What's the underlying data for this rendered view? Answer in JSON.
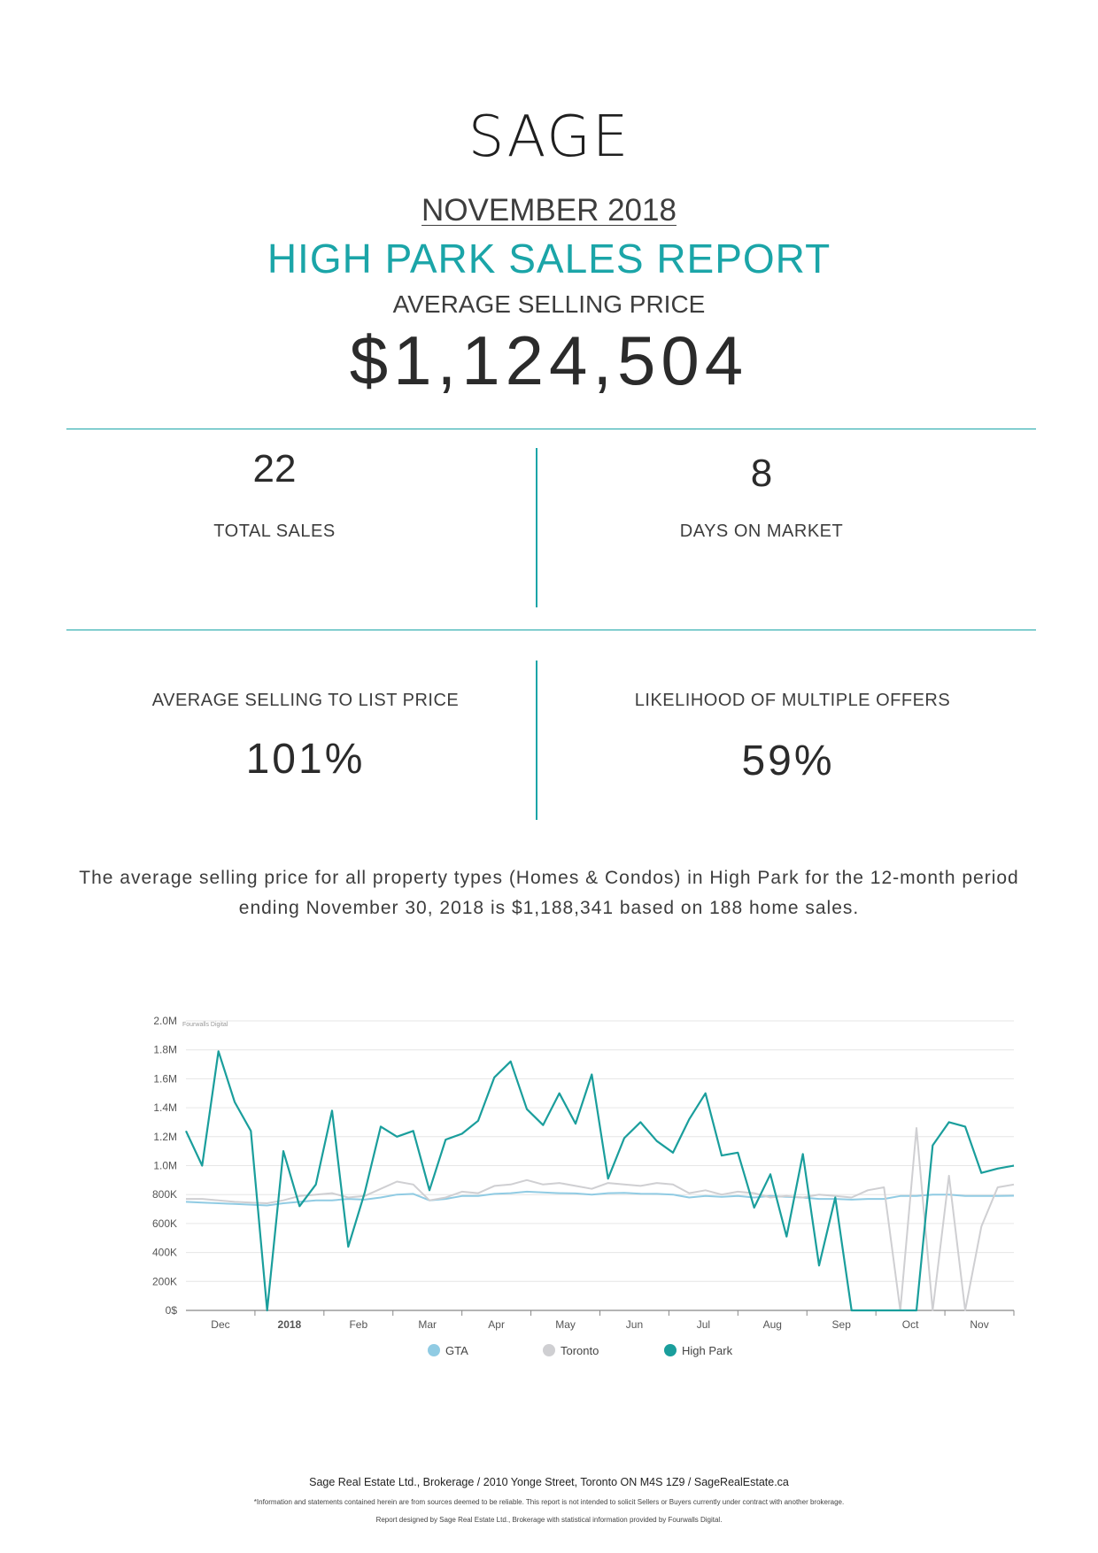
{
  "brand": {
    "logo_text": "SAGE"
  },
  "header": {
    "period": "NOVEMBER 2018",
    "title": "HIGH PARK SALES REPORT",
    "avg_price_label": "AVERAGE SELLING PRICE",
    "avg_price_value": "$1,124,504"
  },
  "stats": {
    "total_sales": {
      "value": "22",
      "label": "TOTAL SALES"
    },
    "days_on_market": {
      "value": "8",
      "label": "DAYS ON MARKET"
    },
    "sell_to_list": {
      "label": "AVERAGE SELLING TO LIST PRICE",
      "value": "101%"
    },
    "multiple_offers": {
      "label": "LIKELIHOOD OF MULTIPLE OFFERS",
      "value": "59%"
    }
  },
  "summary": {
    "line1": "The average selling price for all property types (Homes & Condos) in High Park for the 12-month period",
    "line2": "ending November 30, 2018 is $1,188,341 based on 188 home sales."
  },
  "colors": {
    "accent": "#1ba5a8",
    "gta": "#90cbe3",
    "toronto": "#cfcfd2",
    "high_park": "#1a9e9c"
  },
  "chart_data": {
    "type": "line",
    "watermark": "Fourwalls Digital",
    "ylim": [
      0,
      2000000
    ],
    "y_ticks": [
      {
        "value": 0,
        "label": "0$"
      },
      {
        "value": 200000,
        "label": "200K"
      },
      {
        "value": 400000,
        "label": "400K"
      },
      {
        "value": 600000,
        "label": "600K"
      },
      {
        "value": 800000,
        "label": "800K"
      },
      {
        "value": 1000000,
        "label": "1.0M"
      },
      {
        "value": 1200000,
        "label": "1.2M"
      },
      {
        "value": 1400000,
        "label": "1.4M"
      },
      {
        "value": 1600000,
        "label": "1.6M"
      },
      {
        "value": 1800000,
        "label": "1.8M"
      },
      {
        "value": 2000000,
        "label": "2.0M"
      }
    ],
    "x_ticks": [
      "Dec",
      "2018",
      "Feb",
      "Mar",
      "Apr",
      "May",
      "Jun",
      "Jul",
      "Aug",
      "Sep",
      "Oct",
      "Nov"
    ],
    "series": [
      {
        "name": "GTA",
        "values": [
          750000,
          745000,
          740000,
          735000,
          730000,
          725000,
          740000,
          750000,
          760000,
          760000,
          770000,
          765000,
          780000,
          800000,
          805000,
          760000,
          770000,
          790000,
          790000,
          805000,
          810000,
          820000,
          815000,
          810000,
          808000,
          800000,
          810000,
          812000,
          806000,
          805000,
          800000,
          780000,
          790000,
          785000,
          790000,
          780000,
          790000,
          785000,
          780000,
          770000,
          770000,
          765000,
          770000,
          770000,
          790000,
          790000,
          800000,
          800000,
          790000,
          790000,
          790000,
          792000
        ]
      },
      {
        "name": "Toronto",
        "values": [
          770000,
          770000,
          760000,
          750000,
          745000,
          740000,
          760000,
          790000,
          800000,
          810000,
          780000,
          790000,
          840000,
          890000,
          870000,
          760000,
          780000,
          820000,
          810000,
          860000,
          870000,
          900000,
          870000,
          880000,
          860000,
          840000,
          880000,
          870000,
          860000,
          880000,
          870000,
          810000,
          830000,
          800000,
          820000,
          810000,
          780000,
          790000,
          780000,
          800000,
          790000,
          780000,
          830000,
          850000,
          0,
          1260000,
          0,
          930000,
          0,
          580000,
          850000,
          870000
        ]
      },
      {
        "name": "High Park",
        "values": [
          1240000,
          1000000,
          1790000,
          1440000,
          1240000,
          0,
          1100000,
          720000,
          870000,
          1380000,
          440000,
          810000,
          1270000,
          1200000,
          1240000,
          830000,
          1180000,
          1220000,
          1310000,
          1610000,
          1720000,
          1390000,
          1280000,
          1500000,
          1290000,
          1630000,
          910000,
          1190000,
          1300000,
          1170000,
          1090000,
          1320000,
          1500000,
          1070000,
          1090000,
          710000,
          940000,
          510000,
          1080000,
          310000,
          780000,
          0,
          0,
          0,
          0,
          0,
          1140000,
          1300000,
          1270000,
          950000,
          980000,
          1000000
        ]
      }
    ],
    "legend": [
      "GTA",
      "Toronto",
      "High Park"
    ],
    "legend_position": "bottom"
  },
  "footer": {
    "main": "Sage Real Estate Ltd., Brokerage / 2010 Yonge Street, Toronto ON M4S 1Z9 / SageRealEstate.ca",
    "disclaimer": "*Information and statements contained herein are from sources deemed to be reliable. This report is not intended to solicit Sellers or Buyers currently under contract with another brokerage.",
    "credit": "Report designed by Sage Real Estate Ltd., Brokerage with statistical information provided by Fourwalls Digital."
  }
}
